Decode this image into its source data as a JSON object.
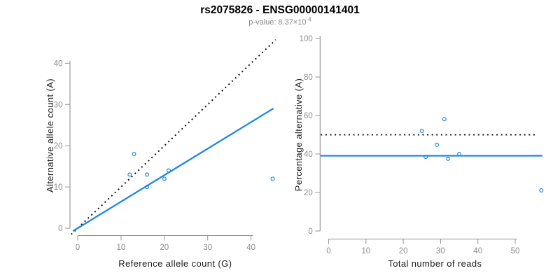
{
  "header": {
    "title": "rs2075826 - ENSG00000141401",
    "subtitle_prefix": "p-value: 8.37×10",
    "subtitle_exponent": "-4"
  },
  "colors": {
    "accent_blue": "#1E87E5",
    "dotted_black": "#111111",
    "axis_gray": "#8f8f8f",
    "tick_label_gray": "#8c8c8c"
  },
  "chart_data": [
    {
      "type": "scatter",
      "panel": "left",
      "xlabel": "Reference allele count (G)",
      "ylabel": "Alternative allele count (A)",
      "xlim": [
        -1.8,
        46.8
      ],
      "ylim": [
        -1.8,
        46.8
      ],
      "x_ticks": [
        0,
        10,
        20,
        30,
        40
      ],
      "y_ticks": [
        0,
        10,
        20,
        30,
        40
      ],
      "grid": false,
      "legend": false,
      "points": [
        [
          12,
          13
        ],
        [
          13,
          18
        ],
        [
          16,
          10
        ],
        [
          16,
          13
        ],
        [
          20,
          12
        ],
        [
          21,
          14
        ],
        [
          45,
          12
        ]
      ],
      "lines": [
        {
          "name": "identity-line",
          "style": "dotted",
          "color": "#111111",
          "slope": 1,
          "intercept": 0,
          "x_span": [
            -1.5,
            45.7
          ]
        },
        {
          "name": "allelic-ratio-fit-line",
          "style": "solid",
          "color": "#1E87E5",
          "slope": 0.643,
          "intercept": 0,
          "x_span": [
            -1.1,
            45.2
          ]
        }
      ]
    },
    {
      "type": "scatter",
      "panel": "right",
      "xlabel": "Total number of reads",
      "ylabel": "Percentage alternative (A)",
      "xlim": [
        -2.3,
        59.3
      ],
      "ylim": [
        -4,
        104
      ],
      "x_ticks": [
        0,
        10,
        20,
        30,
        40,
        50
      ],
      "y_ticks": [
        0,
        20,
        40,
        60,
        80,
        100
      ],
      "grid": false,
      "legend": false,
      "points": [
        [
          25,
          52.0
        ],
        [
          26,
          38.5
        ],
        [
          29,
          44.8
        ],
        [
          31,
          58.1
        ],
        [
          32,
          37.5
        ],
        [
          35,
          40.0
        ],
        [
          57,
          21.1
        ]
      ],
      "lines": [
        {
          "name": "expected-50pct-line",
          "style": "dotted",
          "color": "#111111",
          "slope": 0,
          "intercept": 50,
          "x_span": [
            -2.1,
            56.0
          ]
        },
        {
          "name": "mean-percentage-line",
          "style": "solid",
          "color": "#1E87E5",
          "slope": 0,
          "intercept": 39.1,
          "x_span": [
            -2.2,
            57.3
          ]
        }
      ]
    }
  ]
}
